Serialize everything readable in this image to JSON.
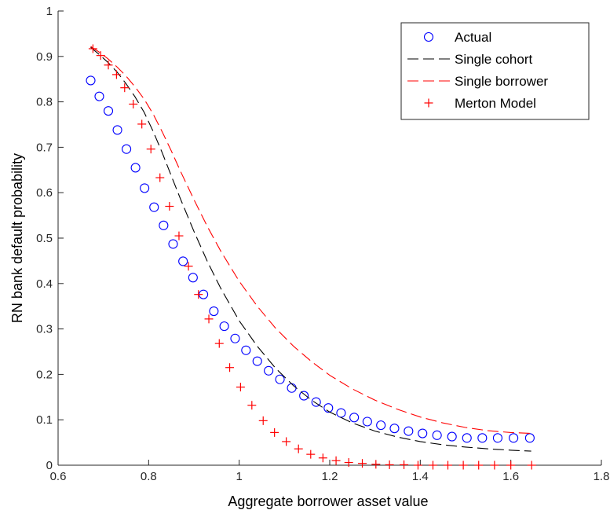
{
  "chart_data": {
    "type": "line",
    "xlabel": "Aggregate borrower asset value",
    "ylabel": "RN bank default probability",
    "xlim": [
      0.6,
      1.8
    ],
    "ylim": [
      0,
      1
    ],
    "xticks": [
      0.6,
      0.8,
      1,
      1.2,
      1.4,
      1.6,
      1.8
    ],
    "xtick_labels": [
      "0.6",
      "0.8",
      "1",
      "1.2",
      "1.4",
      "1.6",
      "1.8"
    ],
    "yticks": [
      0,
      0.1,
      0.2,
      0.3,
      0.4,
      0.5,
      0.6,
      0.7,
      0.8,
      0.9,
      1
    ],
    "ytick_labels": [
      "0",
      "0.1",
      "0.2",
      "0.3",
      "0.4",
      "0.5",
      "0.6",
      "0.7",
      "0.8",
      "0.9",
      "1"
    ],
    "grid": false,
    "legend_position": "top-right",
    "series": [
      {
        "name": "Actual",
        "style": "circle-marker",
        "color": "#0000ff",
        "x": [
          0.672,
          0.691,
          0.711,
          0.731,
          0.751,
          0.771,
          0.791,
          0.812,
          0.833,
          0.854,
          0.876,
          0.898,
          0.921,
          0.944,
          0.967,
          0.991,
          1.015,
          1.04,
          1.065,
          1.09,
          1.116,
          1.143,
          1.17,
          1.197,
          1.225,
          1.254,
          1.283,
          1.313,
          1.343,
          1.374,
          1.405,
          1.437,
          1.47,
          1.503,
          1.537,
          1.571,
          1.606,
          1.642
        ],
        "y": [
          0.847,
          0.812,
          0.78,
          0.738,
          0.696,
          0.655,
          0.61,
          0.568,
          0.528,
          0.487,
          0.449,
          0.413,
          0.376,
          0.339,
          0.306,
          0.279,
          0.253,
          0.229,
          0.208,
          0.189,
          0.17,
          0.153,
          0.139,
          0.126,
          0.115,
          0.105,
          0.096,
          0.088,
          0.081,
          0.075,
          0.07,
          0.066,
          0.063,
          0.06,
          0.06,
          0.06,
          0.06,
          0.06
        ]
      },
      {
        "name": "Single cohort",
        "style": "dashed-line",
        "color": "#000000",
        "x": [
          0.672,
          0.69,
          0.71,
          0.73,
          0.75,
          0.77,
          0.79,
          0.81,
          0.83,
          0.85,
          0.87,
          0.9,
          0.93,
          0.96,
          1.0,
          1.04,
          1.08,
          1.12,
          1.16,
          1.2,
          1.25,
          1.3,
          1.35,
          1.4,
          1.45,
          1.5,
          1.55,
          1.6,
          1.645
        ],
        "y": [
          0.92,
          0.905,
          0.887,
          0.866,
          0.84,
          0.811,
          0.777,
          0.735,
          0.688,
          0.637,
          0.587,
          0.515,
          0.448,
          0.388,
          0.318,
          0.262,
          0.214,
          0.175,
          0.143,
          0.117,
          0.093,
          0.075,
          0.062,
          0.052,
          0.045,
          0.04,
          0.036,
          0.033,
          0.031
        ]
      },
      {
        "name": "Single borrower",
        "style": "dashed-line",
        "color": "#ff0000",
        "x": [
          0.672,
          0.69,
          0.71,
          0.73,
          0.75,
          0.77,
          0.79,
          0.81,
          0.83,
          0.85,
          0.87,
          0.9,
          0.93,
          0.96,
          1.0,
          1.04,
          1.08,
          1.12,
          1.16,
          1.2,
          1.25,
          1.3,
          1.35,
          1.4,
          1.45,
          1.5,
          1.55,
          1.6,
          1.645
        ],
        "y": [
          0.922,
          0.91,
          0.895,
          0.877,
          0.857,
          0.833,
          0.806,
          0.773,
          0.734,
          0.692,
          0.648,
          0.585,
          0.525,
          0.47,
          0.405,
          0.35,
          0.302,
          0.262,
          0.228,
          0.198,
          0.168,
          0.143,
          0.123,
          0.106,
          0.093,
          0.083,
          0.076,
          0.072,
          0.07
        ]
      },
      {
        "name": "Merton Model",
        "style": "plus-marker",
        "color": "#ff0000",
        "x": [
          0.677,
          0.694,
          0.711,
          0.729,
          0.747,
          0.766,
          0.785,
          0.805,
          0.825,
          0.846,
          0.867,
          0.888,
          0.91,
          0.933,
          0.956,
          0.979,
          1.003,
          1.028,
          1.053,
          1.078,
          1.104,
          1.131,
          1.158,
          1.185,
          1.214,
          1.242,
          1.272,
          1.302,
          1.332,
          1.364,
          1.395,
          1.428,
          1.461,
          1.495,
          1.529,
          1.564,
          1.6,
          1.646
        ],
        "y": [
          0.917,
          0.902,
          0.881,
          0.86,
          0.831,
          0.795,
          0.751,
          0.696,
          0.633,
          0.57,
          0.505,
          0.438,
          0.376,
          0.322,
          0.268,
          0.215,
          0.172,
          0.132,
          0.098,
          0.072,
          0.052,
          0.036,
          0.024,
          0.016,
          0.01,
          0.006,
          0.004,
          0.002,
          0.001,
          0.001,
          0.0,
          0.0,
          0.0,
          0.0,
          0.0,
          0.0,
          0.0,
          0.0
        ]
      }
    ]
  }
}
